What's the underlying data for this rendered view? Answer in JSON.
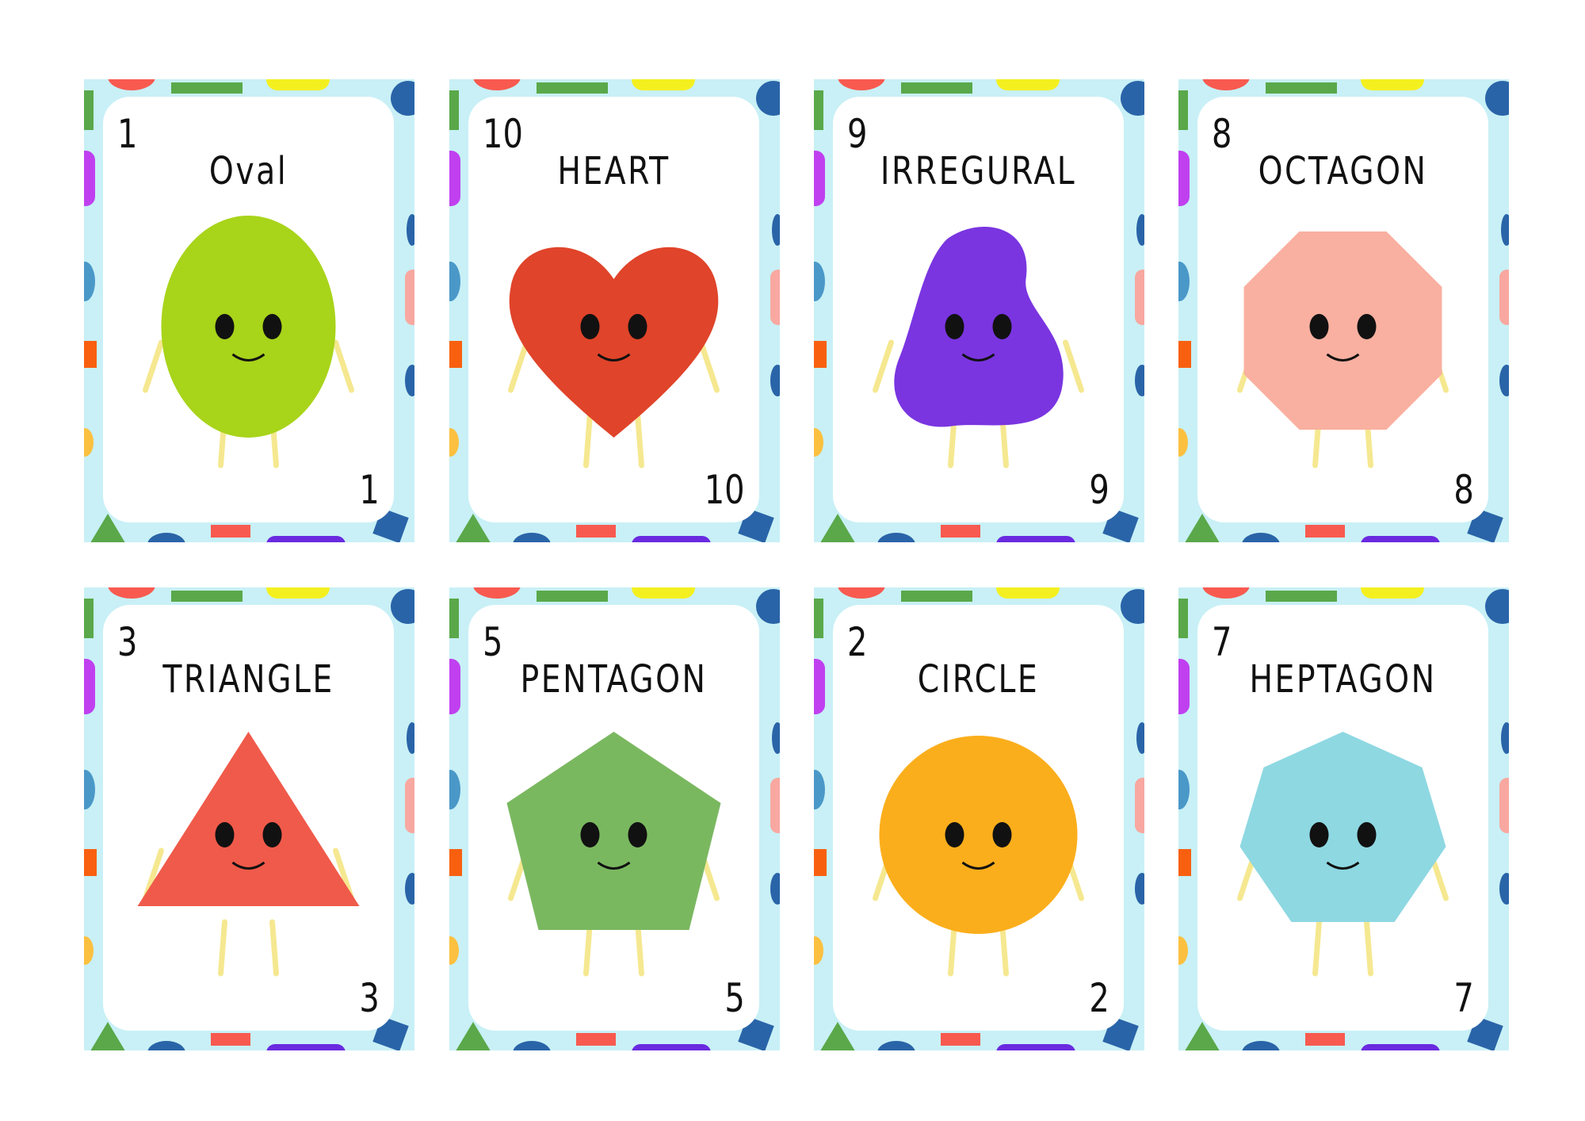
{
  "cards": [
    {
      "number": "1",
      "title": "Oval",
      "shape": "oval",
      "color": "#a8d41a"
    },
    {
      "number": "10",
      "title": "HEART",
      "shape": "heart",
      "color": "#e0442a"
    },
    {
      "number": "9",
      "title": "IRREGURAL",
      "shape": "blob",
      "color": "#7a35e0"
    },
    {
      "number": "8",
      "title": "OCTAGON",
      "shape": "octagon",
      "color": "#f9b0a0"
    },
    {
      "number": "3",
      "title": "TRIANGLE",
      "shape": "triangle",
      "color": "#f05a4a"
    },
    {
      "number": "5",
      "title": "PENTAGON",
      "shape": "pentagon",
      "color": "#7ab860"
    },
    {
      "number": "2",
      "title": "CIRCLE",
      "shape": "circle",
      "color": "#fbae1c"
    },
    {
      "number": "7",
      "title": "HEPTAGON",
      "shape": "heptagon",
      "color": "#8ed8e2"
    }
  ],
  "border_colors": {
    "background": "#c8f0f6",
    "green": "#5aa84a",
    "blue": "#2a64a8",
    "red": "#f85a50",
    "yellow": "#f4f020",
    "purple": "#c040f0",
    "orange": "#f86010",
    "pink": "#f8a8a0"
  }
}
